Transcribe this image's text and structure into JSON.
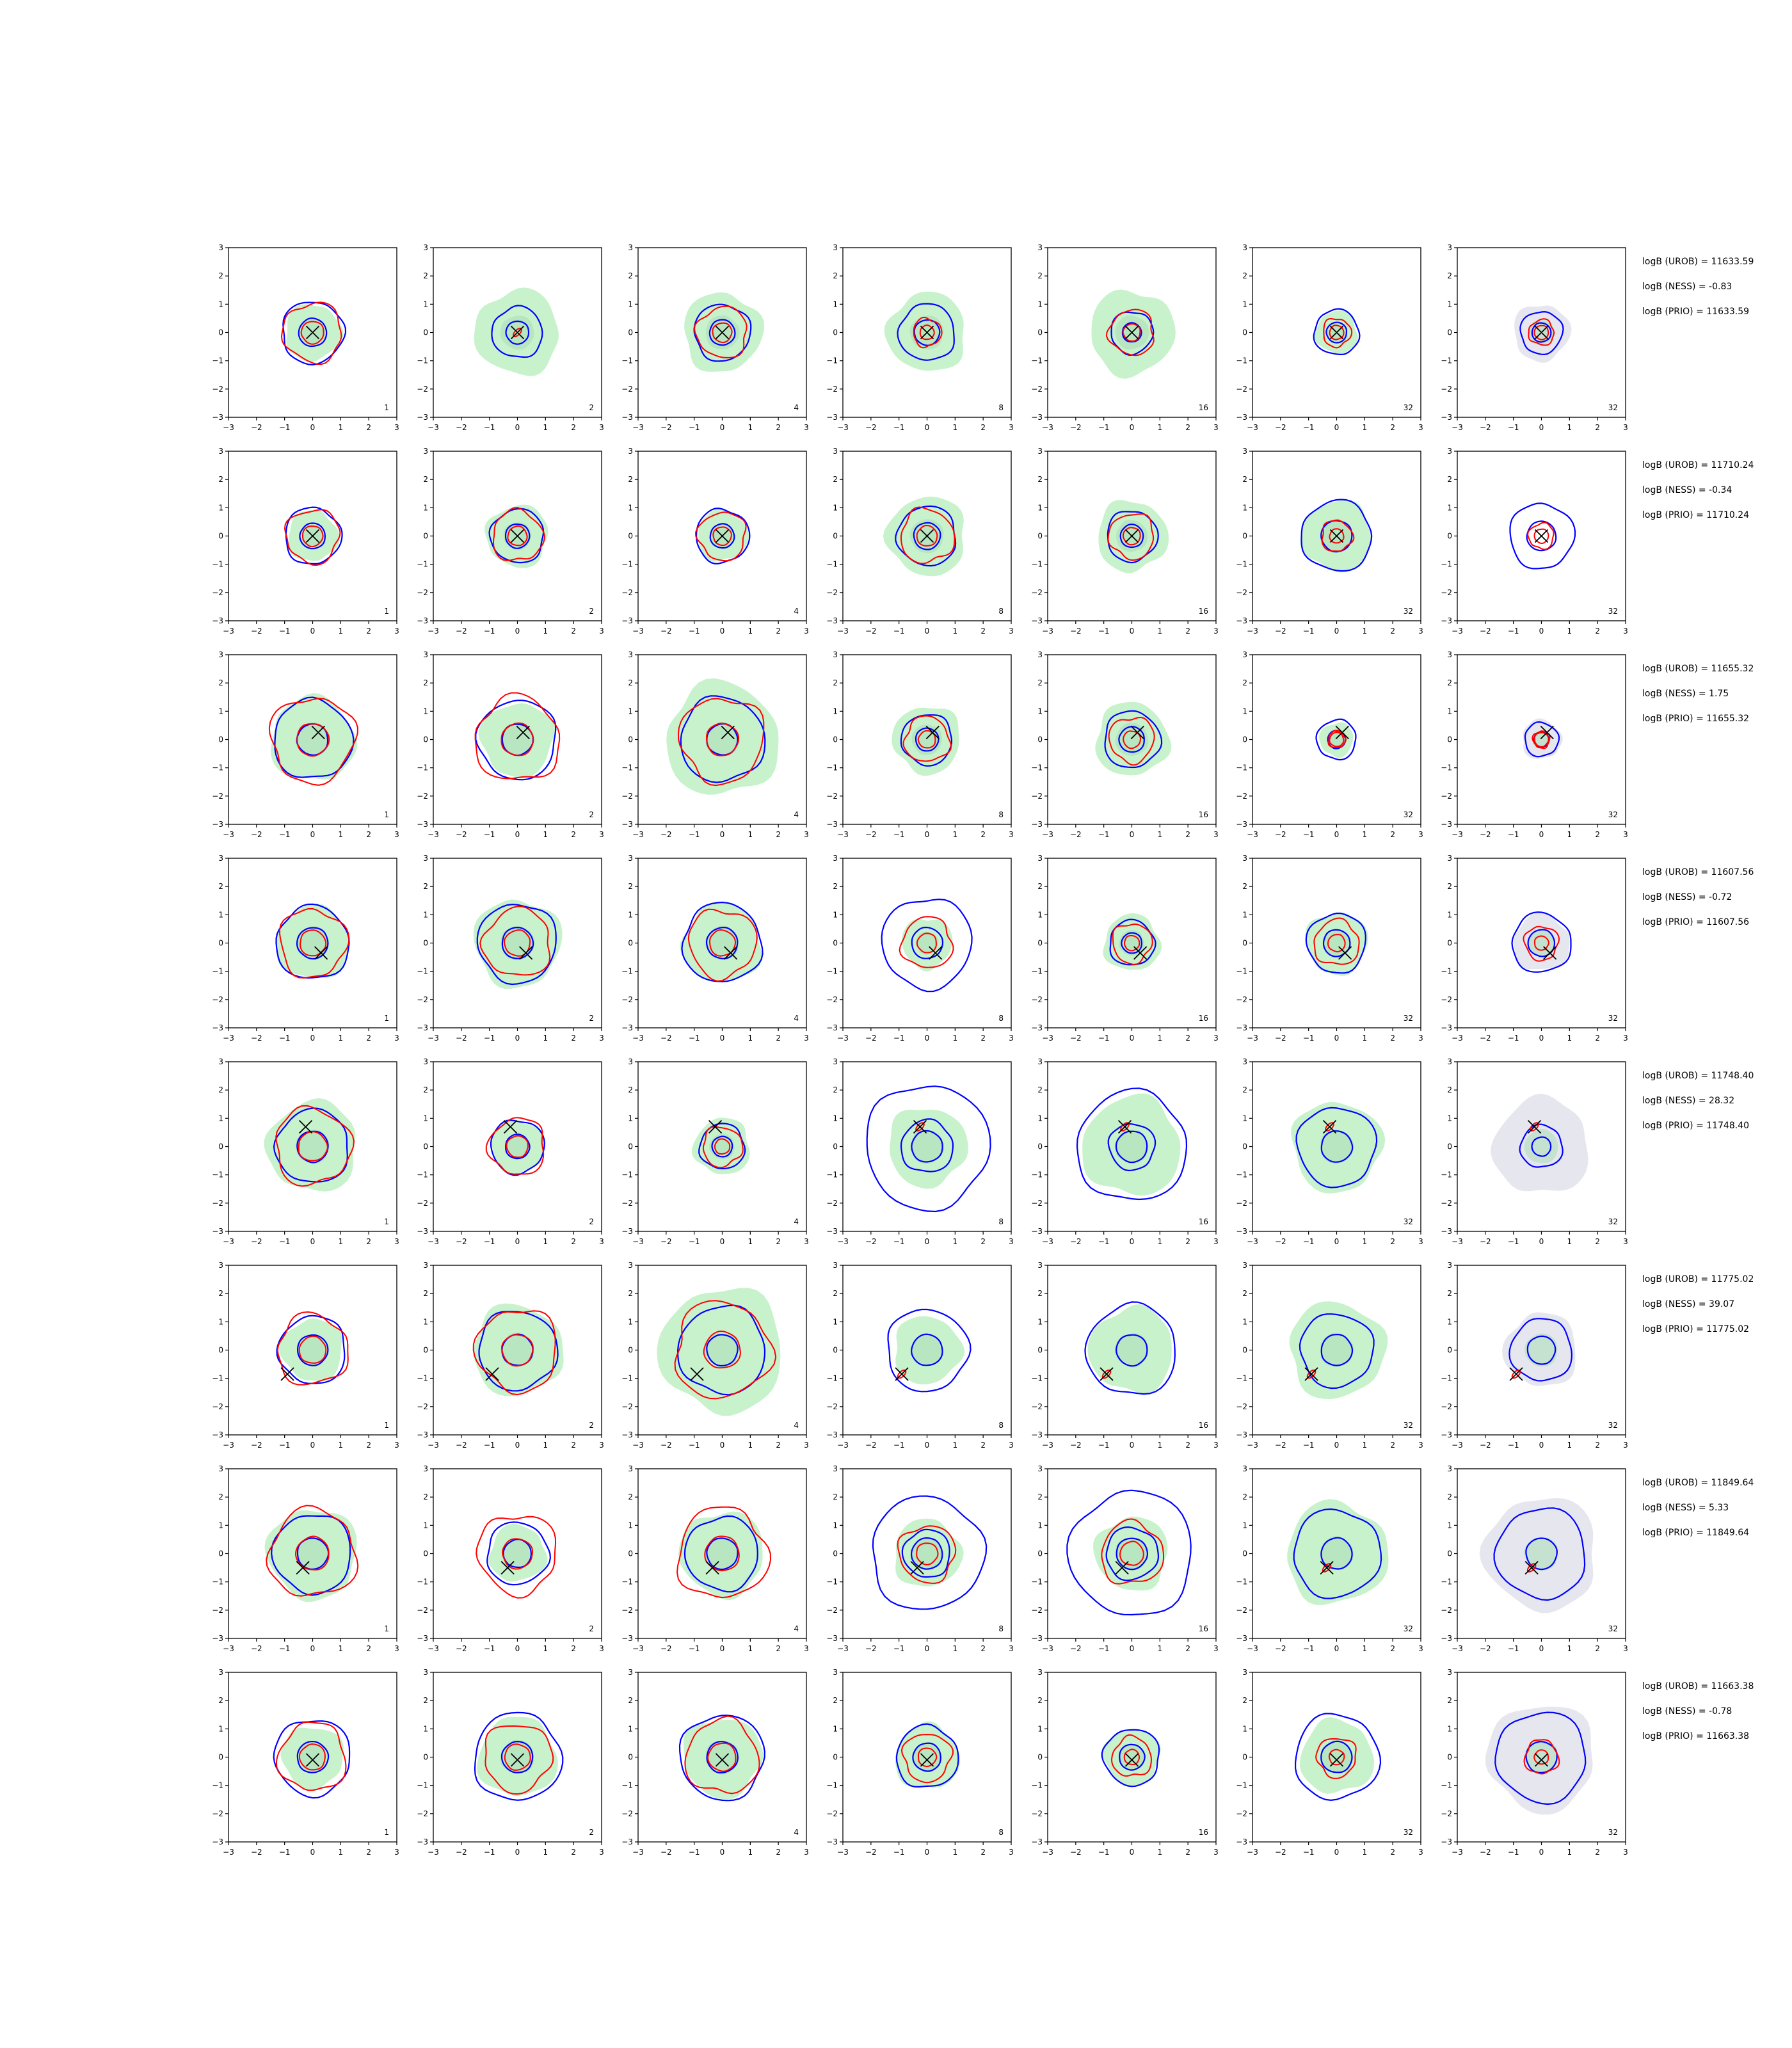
{
  "chart_data": {
    "type": "contour-grid",
    "title": "",
    "grid": false,
    "xlim": [
      -3,
      3
    ],
    "ylim": [
      -3,
      3
    ],
    "x_ticks": [
      -3,
      -2,
      -1,
      0,
      1,
      2,
      3
    ],
    "y_ticks": [
      -3,
      -2,
      -1,
      0,
      1,
      2,
      3
    ],
    "column_labels": [
      "1",
      "2",
      "4",
      "8",
      "16",
      "32",
      "32"
    ],
    "contour_colors": {
      "fill": "#c8f2cc",
      "inner_fill": "#a9ddb6",
      "prior_fill": "#e6e6ee",
      "blue": "#0000ff",
      "red": "#ff0000",
      "marker": "#000000"
    },
    "rows": [
      {
        "marker": [
          0.0,
          0.0
        ],
        "annotations": [
          "logB (UROB) = 11633.59",
          "logB (NESS) = -0.83",
          "logB (PRIO) = 11633.59"
        ],
        "blue": [
          1.1,
          0.9,
          1.0,
          1.0,
          0.75,
          0.8,
          0.75
        ],
        "red": [
          1.05,
          0.0,
          0.9,
          0.5,
          0.8,
          0.5,
          0.45
        ],
        "fill": [
          1.0,
          1.5,
          1.4,
          1.4,
          1.5,
          0.75,
          1.0
        ]
      },
      {
        "marker": [
          0.0,
          0.0
        ],
        "annotations": [
          "logB (UROB) = 11710.24",
          "logB (NESS) = -0.34",
          "logB (PRIO) = 11710.24"
        ],
        "blue": [
          1.0,
          0.95,
          0.95,
          1.05,
          0.9,
          1.25,
          1.15
        ],
        "red": [
          0.95,
          0.9,
          0.85,
          0.95,
          0.8,
          0.55,
          0.45
        ],
        "fill": [
          0.9,
          1.1,
          0.9,
          1.4,
          1.25,
          1.25,
          0.0
        ]
      },
      {
        "marker": [
          0.2,
          0.25
        ],
        "annotations": [
          "logB (UROB) = 11655.32",
          "logB (NESS) = 1.75",
          "logB (PRIO) = 11655.32"
        ],
        "blue": [
          1.4,
          1.4,
          1.5,
          0.9,
          1.0,
          0.7,
          0.6
        ],
        "red": [
          1.5,
          1.5,
          1.5,
          0.8,
          0.8,
          0.3,
          0.3
        ],
        "fill": [
          1.5,
          1.3,
          2.0,
          1.2,
          1.3,
          0.6,
          0.7
        ]
      },
      {
        "marker": [
          0.3,
          -0.35
        ],
        "annotations": [
          "logB (UROB) = 11607.56",
          "logB (NESS) = -0.72",
          "logB (PRIO) = 11607.56"
        ],
        "blue": [
          1.3,
          1.4,
          1.4,
          1.6,
          0.8,
          1.05,
          1.05
        ],
        "red": [
          1.2,
          1.2,
          1.2,
          0.9,
          0.7,
          0.8,
          0.6
        ],
        "fill": [
          1.3,
          1.55,
          1.4,
          0.9,
          1.0,
          1.1,
          1.0
        ]
      },
      {
        "marker": [
          -0.25,
          0.7
        ],
        "annotations": [
          "logB (UROB) = 11748.40",
          "logB (NESS) = 28.32",
          "logB (PRIO) = 11748.40"
        ],
        "blue": [
          1.3,
          0.95,
          0.8,
          2.2,
          1.95,
          1.4,
          0.75
        ],
        "red": [
          1.35,
          1.0,
          0.7,
          0.0,
          0.0,
          0.0,
          0.0
        ],
        "fill": [
          1.6,
          0.95,
          1.0,
          1.4,
          1.75,
          1.6,
          1.7
        ]
      },
      {
        "marker": [
          -0.9,
          -0.85
        ],
        "annotations": [
          "logB (UROB) = 11775.02",
          "logB (NESS) = 39.07",
          "logB (PRIO) = 11775.02"
        ],
        "blue": [
          1.2,
          1.4,
          1.55,
          1.45,
          1.6,
          1.3,
          1.1
        ],
        "red": [
          1.25,
          1.45,
          1.7,
          0.0,
          0.0,
          0.0,
          0.0
        ],
        "fill": [
          1.1,
          1.6,
          2.2,
          1.2,
          1.5,
          1.7,
          1.3
        ]
      },
      {
        "marker": [
          -0.35,
          -0.5
        ],
        "annotations": [
          "logB (UROB) = 11849.64",
          "logB (NESS) = 5.33",
          "logB (PRIO) = 11849.64"
        ],
        "blue": [
          1.4,
          1.1,
          1.3,
          2.0,
          2.2,
          1.55,
          1.6
        ],
        "red": [
          1.55,
          1.4,
          1.6,
          1.0,
          1.1,
          0.0,
          0.0
        ],
        "fill": [
          1.6,
          1.0,
          1.5,
          1.2,
          1.3,
          1.8,
          2.0
        ]
      },
      {
        "marker": [
          0.0,
          -0.1
        ],
        "annotations": [
          "logB (UROB) = 11663.38",
          "logB (NESS) = -0.78",
          "logB (PRIO) = 11663.38"
        ],
        "blue": [
          1.35,
          1.55,
          1.5,
          1.1,
          1.0,
          1.5,
          1.6
        ],
        "red": [
          1.2,
          1.2,
          1.3,
          0.85,
          0.7,
          0.7,
          0.6
        ],
        "fill": [
          1.1,
          1.4,
          1.4,
          1.15,
          1.0,
          1.3,
          1.9
        ]
      }
    ]
  }
}
